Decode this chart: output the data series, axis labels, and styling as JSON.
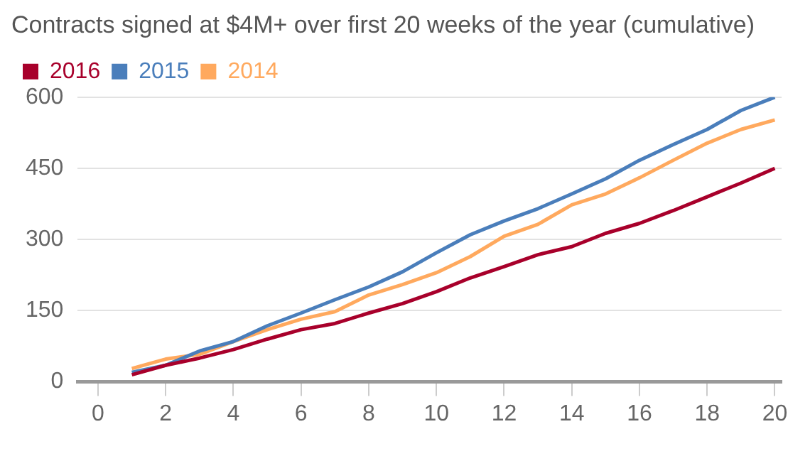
{
  "chart_data": {
    "type": "line",
    "title": "Contracts signed at $4M+ over first 20 weeks of the year (cumulative)",
    "x": [
      1,
      2,
      3,
      4,
      5,
      6,
      7,
      8,
      9,
      10,
      11,
      12,
      13,
      14,
      15,
      16,
      17,
      18,
      19,
      20
    ],
    "series": [
      {
        "name": "2016",
        "color": "#a8002b",
        "values": [
          15,
          35,
          50,
          68,
          90,
          110,
          123,
          145,
          165,
          190,
          219,
          243,
          268,
          285,
          313,
          334,
          361,
          390,
          419,
          450
        ]
      },
      {
        "name": "2015",
        "color": "#4a7ebb",
        "values": [
          20,
          35,
          65,
          85,
          118,
          145,
          173,
          200,
          232,
          272,
          310,
          339,
          365,
          396,
          428,
          467,
          500,
          532,
          572,
          600
        ]
      },
      {
        "name": "2014",
        "color": "#ffa95e",
        "values": [
          28,
          48,
          58,
          85,
          110,
          132,
          148,
          183,
          205,
          230,
          264,
          307,
          332,
          373,
          396,
          430,
          467,
          503,
          532,
          552
        ]
      }
    ],
    "xlim": [
      -0.6,
      20.2
    ],
    "xticks": [
      0,
      2,
      4,
      6,
      8,
      10,
      12,
      14,
      16,
      18,
      20
    ],
    "ylim": [
      0,
      600
    ],
    "yticks": [
      0,
      150,
      300,
      450,
      600
    ],
    "grid": "y",
    "legend": "top left",
    "marker": "none",
    "line_style": "solid"
  }
}
